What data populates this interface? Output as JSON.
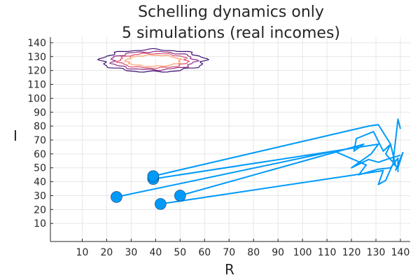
{
  "chart_data": {
    "type": "line",
    "title": [
      "Schelling dynamics only",
      "5 simulations (real incomes)"
    ],
    "xlabel": "R",
    "ylabel": "I",
    "xlim": [
      -3,
      144
    ],
    "ylim": [
      -3,
      144
    ],
    "xticks": [
      10,
      20,
      30,
      40,
      50,
      60,
      70,
      80,
      90,
      100,
      110,
      120,
      130,
      140
    ],
    "yticks": [
      10,
      20,
      30,
      40,
      50,
      60,
      70,
      80,
      90,
      100,
      110,
      120,
      130,
      140
    ],
    "grid": true,
    "legend": "none",
    "series_color": "#009af9",
    "contour": {
      "center": [
        39,
        127
      ],
      "levels": [
        {
          "color": "#3b0f70",
          "rx": 21,
          "ry": 8
        },
        {
          "color": "#8c2981",
          "rx": 17,
          "ry": 6.5
        },
        {
          "color": "#de4968",
          "rx": 14,
          "ry": 5.2
        },
        {
          "color": "#fe9f6d",
          "rx": 11,
          "ry": 4
        }
      ]
    },
    "series": [
      {
        "start": [
          24,
          29
        ],
        "points": [
          [
            24,
            29
          ],
          [
            113,
            62
          ],
          [
            126,
            52
          ],
          [
            123,
            45
          ],
          [
            131,
            49
          ],
          [
            136,
            50
          ],
          [
            139,
            57
          ],
          [
            139,
            47
          ]
        ]
      },
      {
        "start": [
          39,
          42
        ],
        "points": [
          [
            39,
            42
          ],
          [
            131,
            67
          ],
          [
            128,
            60
          ],
          [
            120,
            50
          ],
          [
            127,
            56
          ],
          [
            131,
            54
          ],
          [
            136,
            57
          ],
          [
            140,
            59
          ]
        ]
      },
      {
        "start": [
          39,
          44
        ],
        "points": [
          [
            39,
            44
          ],
          [
            127,
            80
          ],
          [
            131,
            81
          ],
          [
            136,
            67
          ],
          [
            134,
            60
          ],
          [
            137,
            54
          ],
          [
            139,
            85
          ],
          [
            140,
            78
          ]
        ]
      },
      {
        "start": [
          50,
          30
        ],
        "points": [
          [
            50,
            30
          ],
          [
            125,
            67
          ],
          [
            121,
            62
          ],
          [
            122,
            71
          ],
          [
            129,
            76
          ],
          [
            133,
            62
          ],
          [
            136,
            67
          ],
          [
            138,
            52
          ]
        ]
      },
      {
        "start": [
          42,
          24
        ],
        "points": [
          [
            42,
            24
          ],
          [
            133,
            48
          ],
          [
            131,
            38
          ],
          [
            134,
            41
          ],
          [
            137,
            53
          ],
          [
            139,
            50
          ],
          [
            141,
            61
          ],
          [
            138,
            48
          ]
        ]
      }
    ]
  }
}
